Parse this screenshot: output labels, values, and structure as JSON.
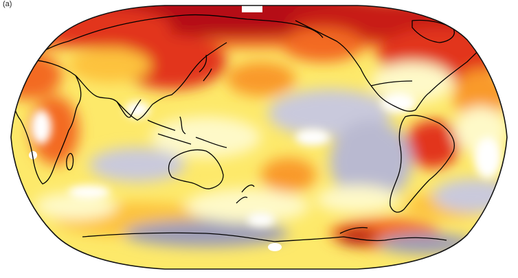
{
  "panel_label": "(a)",
  "colors": {
    "ocean_outline": "#111111",
    "coast": "#000000",
    "background": "#ffffff",
    "deep_red": "#b50f12",
    "red": "#e2351b",
    "orange_red": "#f36a22",
    "orange": "#f99a2b",
    "yellow_orange": "#fdc23e",
    "yellow": "#fde96a",
    "pale_yellow": "#fef9c8",
    "white": "#ffffff",
    "lavender": "#c9c9dc",
    "grey_blue": "#9c9cb8"
  },
  "map": {
    "projection": "robinson",
    "center_longitude": "Pacific"
  }
}
